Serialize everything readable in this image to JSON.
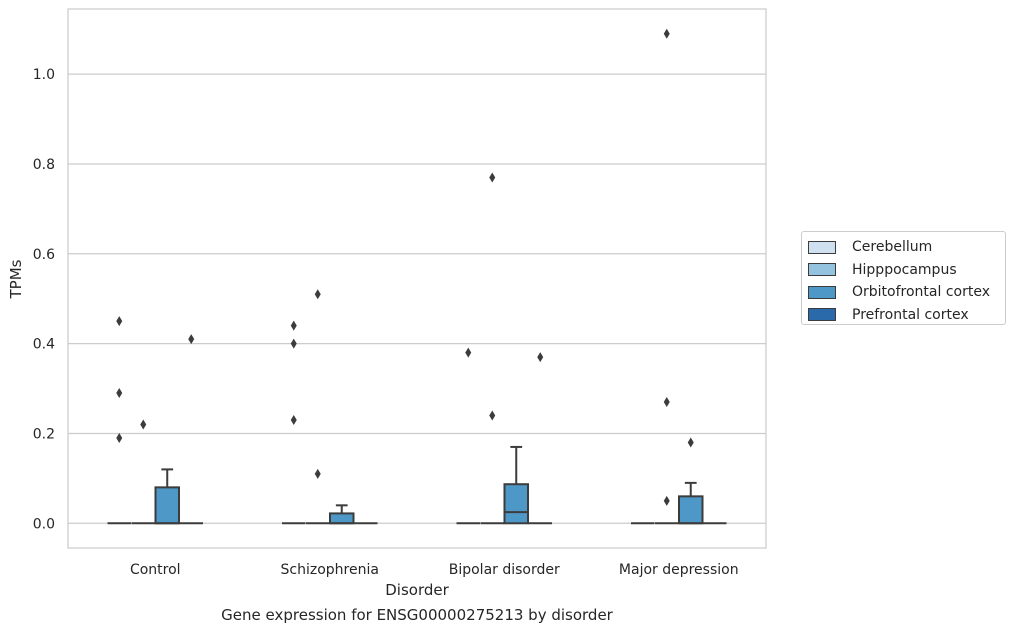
{
  "chart_data": {
    "type": "box",
    "xlabel": "Disorder",
    "ylabel": "TPMs",
    "caption": "Gene expression for ENSG00000275213 by disorder",
    "categories": [
      "Control",
      "Schizophrenia",
      "Bipolar disorder",
      "Major depression"
    ],
    "ylim": [
      -0.055,
      1.145
    ],
    "yticks": [
      "0.0",
      "0.2",
      "0.4",
      "0.6",
      "0.8",
      "1.0"
    ],
    "grid": "horizontal",
    "legend_position": "right",
    "legend": [
      {
        "name": "Cerebellum",
        "color": "#cfe0f0"
      },
      {
        "name": "Hipppocampus",
        "color": "#93c3df"
      },
      {
        "name": "Orbitofrontal cortex",
        "color": "#4e98c8"
      },
      {
        "name": "Prefrontal cortex",
        "color": "#2a6aaa"
      }
    ],
    "series": [
      {
        "name": "Cerebellum",
        "boxes": [
          {
            "q1": 0,
            "median": 0,
            "q3": 0,
            "whisker_low": 0,
            "whisker_high": 0,
            "outliers": [
              0.45,
              0.29,
              0.19
            ]
          },
          {
            "q1": 0,
            "median": 0,
            "q3": 0,
            "whisker_low": 0,
            "whisker_high": 0,
            "outliers": [
              0.44,
              0.4,
              0.23
            ]
          },
          {
            "q1": 0,
            "median": 0,
            "q3": 0,
            "whisker_low": 0,
            "whisker_high": 0,
            "outliers": [
              0.38
            ]
          },
          {
            "q1": 0,
            "median": 0,
            "q3": 0,
            "whisker_low": 0,
            "whisker_high": 0,
            "outliers": []
          }
        ]
      },
      {
        "name": "Hipppocampus",
        "boxes": [
          {
            "q1": 0,
            "median": 0,
            "q3": 0,
            "whisker_low": 0,
            "whisker_high": 0,
            "outliers": [
              0.22
            ]
          },
          {
            "q1": 0,
            "median": 0,
            "q3": 0,
            "whisker_low": 0,
            "whisker_high": 0,
            "outliers": [
              0.51,
              0.11
            ]
          },
          {
            "q1": 0,
            "median": 0,
            "q3": 0,
            "whisker_low": 0,
            "whisker_high": 0,
            "outliers": [
              0.77,
              0.24
            ]
          },
          {
            "q1": 0,
            "median": 0,
            "q3": 0,
            "whisker_low": 0,
            "whisker_high": 0,
            "outliers": [
              1.09,
              0.27,
              0.05
            ]
          }
        ]
      },
      {
        "name": "Orbitofrontal cortex",
        "boxes": [
          {
            "q1": 0,
            "median": 0,
            "q3": 0.08,
            "whisker_low": 0,
            "whisker_high": 0.12,
            "outliers": []
          },
          {
            "q1": 0,
            "median": 0,
            "q3": 0.022,
            "whisker_low": 0,
            "whisker_high": 0.04,
            "outliers": []
          },
          {
            "q1": 0,
            "median": 0.025,
            "q3": 0.087,
            "whisker_low": 0,
            "whisker_high": 0.17,
            "outliers": []
          },
          {
            "q1": 0,
            "median": 0,
            "q3": 0.06,
            "whisker_low": 0,
            "whisker_high": 0.09,
            "outliers": [
              0.18
            ]
          }
        ]
      },
      {
        "name": "Prefrontal cortex",
        "boxes": [
          {
            "q1": 0,
            "median": 0,
            "q3": 0,
            "whisker_low": 0,
            "whisker_high": 0,
            "outliers": [
              0.41
            ]
          },
          {
            "q1": 0,
            "median": 0,
            "q3": 0,
            "whisker_low": 0,
            "whisker_high": 0,
            "outliers": []
          },
          {
            "q1": 0,
            "median": 0,
            "q3": 0,
            "whisker_low": 0,
            "whisker_high": 0,
            "outliers": [
              0.37
            ]
          },
          {
            "q1": 0,
            "median": 0,
            "q3": 0,
            "whisker_low": 0,
            "whisker_high": 0,
            "outliers": []
          }
        ]
      }
    ]
  }
}
